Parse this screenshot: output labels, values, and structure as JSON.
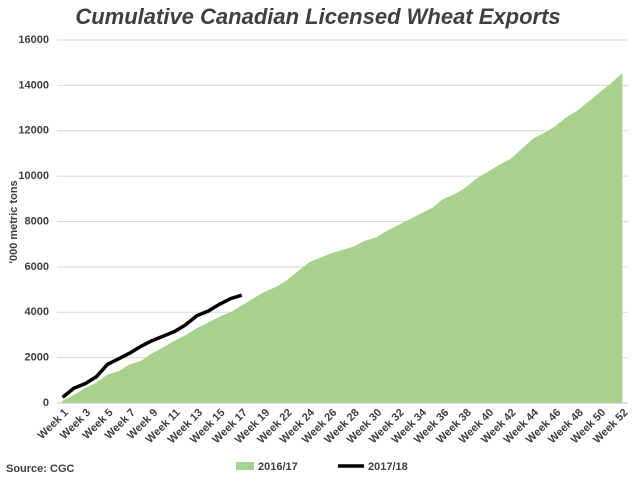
{
  "chart_data": {
    "type": "area-line",
    "title": "Cumulative Canadian Licensed Wheat Exports",
    "y_label": "'000 metric tons",
    "source": "Source: CGC",
    "categories": [
      "Week 1",
      null,
      "Week 3",
      null,
      "Week 5",
      null,
      "Week 7",
      null,
      "Week 9",
      null,
      "Week 11",
      null,
      "Week 13",
      null,
      "Week 15",
      null,
      "Week 17",
      null,
      "Week 19",
      null,
      "Week 22",
      null,
      "Week 24",
      null,
      "Week 26",
      null,
      "Week 28",
      null,
      "Week 30",
      null,
      "Week 32",
      null,
      "Week 34",
      null,
      "Week 36",
      null,
      "Week 38",
      null,
      "Week 40",
      null,
      "Week 42",
      null,
      "Week 44",
      null,
      "Week 46",
      null,
      "Week 48",
      null,
      "Week 50",
      null,
      "Week 52"
    ],
    "series": [
      {
        "name": "2016/17",
        "kind": "area",
        "color": "#a9d18e",
        "values": [
          100,
          350,
          650,
          900,
          1250,
          1400,
          1700,
          1850,
          2200,
          2450,
          2750,
          3000,
          3300,
          3550,
          3800,
          4000,
          4300,
          4600,
          4900,
          5100,
          5400,
          5800,
          6200,
          6400,
          6600,
          6750,
          6900,
          7150,
          7300,
          7600,
          7850,
          8100,
          8350,
          8600,
          9000,
          9200,
          9500,
          9900,
          10200,
          10500,
          10750,
          11200,
          11650,
          11900,
          12200,
          12600,
          12900,
          13300,
          13700,
          14100,
          14550
        ]
      },
      {
        "name": "2017/18",
        "kind": "line",
        "color": "#000000",
        "values": [
          250,
          650,
          850,
          1150,
          1700,
          1950,
          2200,
          2500,
          2750,
          2950,
          3150,
          3450,
          3850,
          4050,
          4350,
          4600,
          4750,
          null,
          null,
          null,
          null,
          null,
          null,
          null,
          null,
          null,
          null,
          null,
          null,
          null,
          null,
          null,
          null,
          null,
          null,
          null,
          null,
          null,
          null,
          null,
          null,
          null,
          null,
          null,
          null,
          null,
          null,
          null,
          null,
          null,
          null
        ]
      }
    ],
    "ylim": [
      0,
      16000
    ],
    "yticks": [
      0,
      2000,
      4000,
      6000,
      8000,
      10000,
      12000,
      14000,
      16000
    ],
    "grid": true
  }
}
